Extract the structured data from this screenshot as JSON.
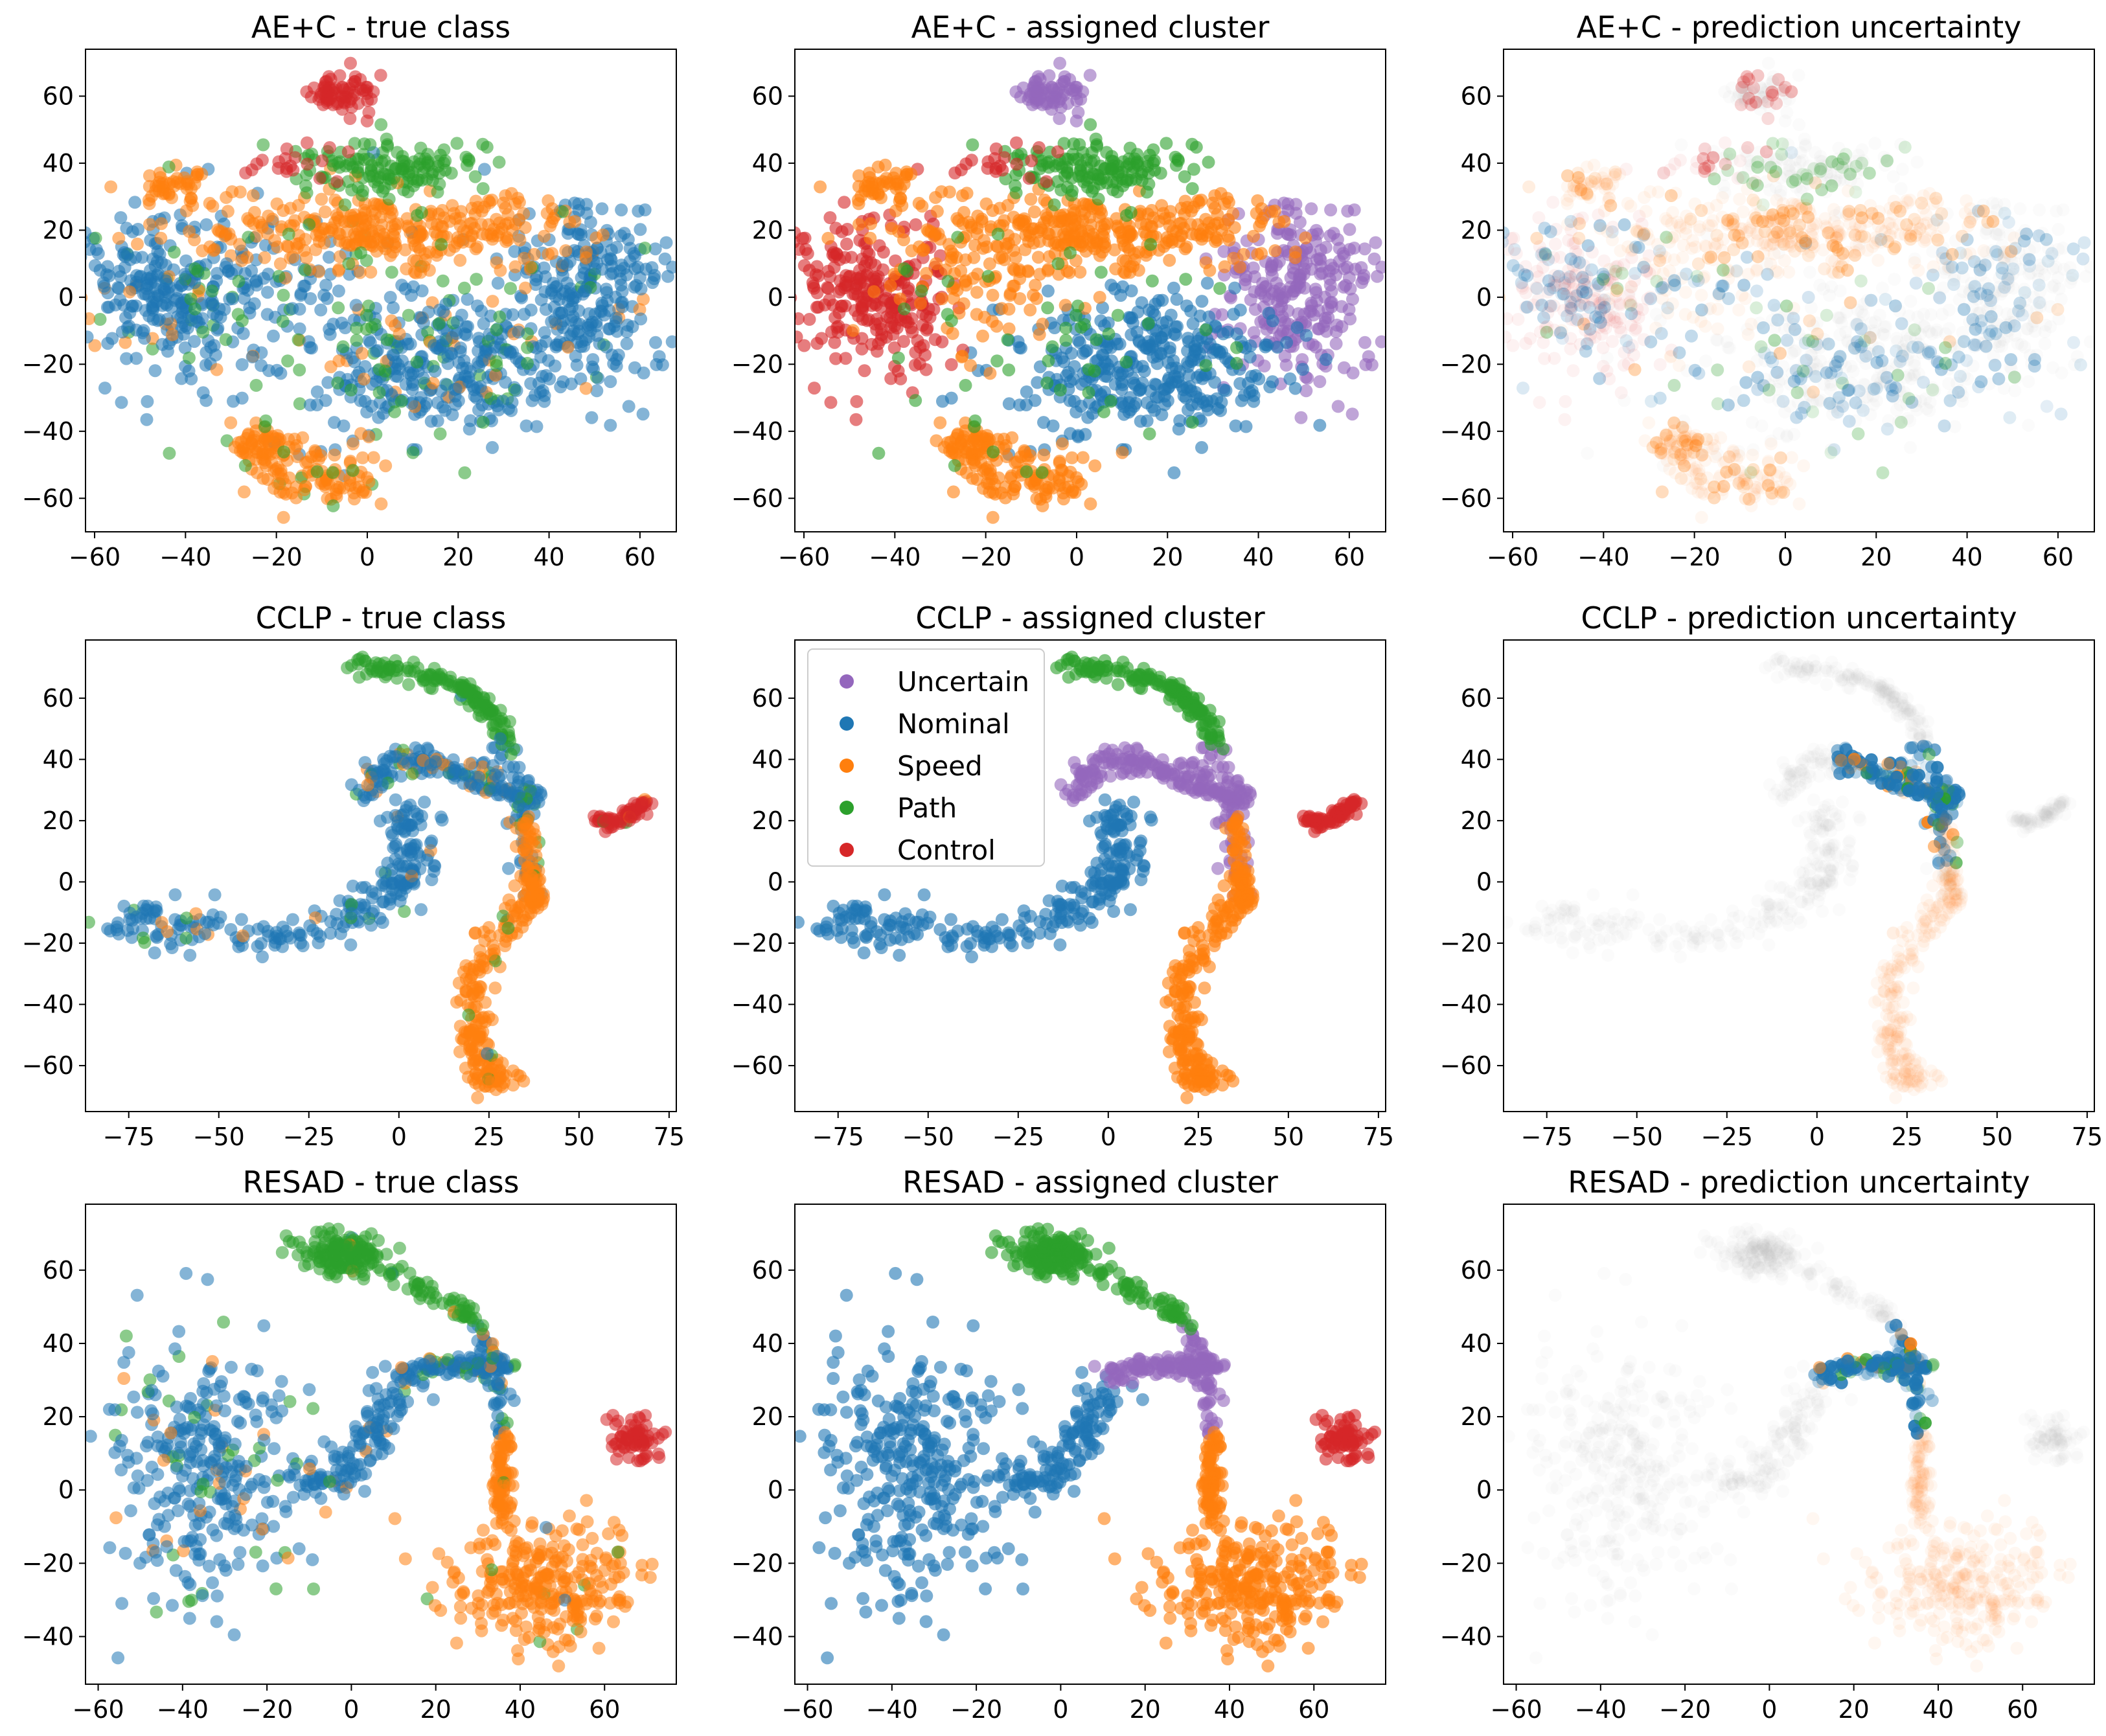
{
  "figure": {
    "class_colors": {
      "Uncertain": "#9467bd",
      "Nominal": "#1f77b4",
      "Speed": "#ff7f0e",
      "Path": "#2ca02c",
      "Control": "#d62728"
    },
    "grey_color": "#b4b4b4",
    "legend": {
      "panel": "CCLP - assigned cluster",
      "entries": [
        "Uncertain",
        "Nominal",
        "Speed",
        "Path",
        "Control"
      ]
    }
  },
  "chart_data": [
    {
      "type": "scatter",
      "title": "AE+C - true class",
      "mode": "true",
      "xlim": [
        -62,
        68
      ],
      "ylim": [
        -70,
        74
      ],
      "xticks": [
        -60,
        -40,
        -20,
        0,
        20,
        40,
        60
      ],
      "xtick_labels": [
        "−60",
        "−40",
        "−20",
        "0",
        "20",
        "40",
        "60"
      ],
      "yticks": [
        -60,
        -40,
        -20,
        0,
        20,
        40,
        60
      ],
      "ytick_labels": [
        "−60",
        "−40",
        "−20",
        "0",
        "20",
        "40",
        "60"
      ],
      "clusters": [
        {
          "true": "Nominal",
          "assigned": "Uncertain",
          "n": 260,
          "cx": 48,
          "cy": 2,
          "sx": 8,
          "sy": 13,
          "mix": 0.1
        },
        {
          "true": "Nominal",
          "assigned": "Nominal",
          "n": 360,
          "cx": 15,
          "cy": -20,
          "sx": 15,
          "sy": 11,
          "mix": 0.25
        },
        {
          "true": "Nominal",
          "assigned": "Control",
          "n": 260,
          "cx": -45,
          "cy": 0,
          "sx": 9,
          "sy": 12,
          "mix": 0.15
        },
        {
          "true": "Nominal",
          "assigned": "Speed",
          "n": 90,
          "cx": -20,
          "cy": 5,
          "sx": 12,
          "sy": 10,
          "mix": 0.1
        },
        {
          "true": "Speed",
          "assigned": "Speed",
          "n": 320,
          "cx": 5,
          "cy": 20,
          "sx": 22,
          "sy": 5,
          "mix": 0.05
        },
        {
          "true": "Speed",
          "assigned": "Speed",
          "n": 90,
          "cx": -10,
          "cy": -55,
          "sx": 7,
          "sy": 5,
          "mix": 0.05
        },
        {
          "true": "Speed",
          "assigned": "Speed",
          "n": 70,
          "cx": -23,
          "cy": -44,
          "sx": 4,
          "sy": 3,
          "mix": 0.05
        },
        {
          "true": "Speed",
          "assigned": "Speed",
          "n": 50,
          "cx": -42,
          "cy": 33,
          "sx": 4,
          "sy": 3,
          "mix": 0.05
        },
        {
          "true": "Path",
          "assigned": "Path",
          "n": 140,
          "cx": 5,
          "cy": 38,
          "sx": 12,
          "sy": 4,
          "mix": 0.1
        },
        {
          "true": "Path",
          "assigned": "Path",
          "n": 60,
          "cx": -5,
          "cy": -10,
          "sx": 22,
          "sy": 20,
          "mix": 0.1
        },
        {
          "true": "Control",
          "assigned": "Uncertain",
          "n": 70,
          "cx": -5,
          "cy": 61,
          "sx": 4,
          "sy": 3,
          "mix": 0.03
        },
        {
          "true": "Control",
          "assigned": "Control",
          "n": 20,
          "cx": -15,
          "cy": 40,
          "sx": 6,
          "sy": 3,
          "mix": 0.05
        }
      ]
    },
    {
      "type": "scatter",
      "title": "AE+C - assigned cluster",
      "mode": "assigned",
      "xlim": [
        -62,
        68
      ],
      "ylim": [
        -70,
        74
      ],
      "xticks": [
        -60,
        -40,
        -20,
        0,
        20,
        40,
        60
      ],
      "xtick_labels": [
        "−60",
        "−40",
        "−20",
        "0",
        "20",
        "40",
        "60"
      ],
      "yticks": [
        -60,
        -40,
        -20,
        0,
        20,
        40,
        60
      ],
      "ytick_labels": [
        "−60",
        "−40",
        "−20",
        "0",
        "20",
        "40",
        "60"
      ],
      "ref": 0
    },
    {
      "type": "scatter",
      "title": "AE+C - prediction uncertainty",
      "mode": "uncertainty",
      "xlim": [
        -62,
        68
      ],
      "ylim": [
        -70,
        74
      ],
      "xticks": [
        -60,
        -40,
        -20,
        0,
        20,
        40,
        60
      ],
      "xtick_labels": [
        "−60",
        "−40",
        "−20",
        "0",
        "20",
        "40",
        "60"
      ],
      "yticks": [
        -60,
        -40,
        -20,
        0,
        20,
        40,
        60
      ],
      "ytick_labels": [
        "−60",
        "−40",
        "−20",
        "0",
        "20",
        "40",
        "60"
      ],
      "ref": 0,
      "uncertain_fraction": 0.3
    },
    {
      "type": "scatter",
      "title": "CCLP - true class",
      "mode": "true",
      "xlim": [
        -87,
        77
      ],
      "ylim": [
        -75,
        79
      ],
      "xticks": [
        -75,
        -50,
        -25,
        0,
        25,
        50,
        75
      ],
      "xtick_labels": [
        "−75",
        "−50",
        "−25",
        "0",
        "25",
        "50",
        "75"
      ],
      "yticks": [
        -60,
        -40,
        -20,
        0,
        20,
        40,
        60
      ],
      "ytick_labels": [
        "−60",
        "−40",
        "−20",
        "0",
        "20",
        "40",
        "60"
      ],
      "clusters": [
        {
          "true": "Nominal",
          "assigned": "Nominal",
          "n": 260,
          "path": [
            [
              -80,
              -12
            ],
            [
              -55,
              -15
            ],
            [
              -30,
              -18
            ],
            [
              -10,
              -10
            ],
            [
              2,
              0
            ],
            [
              5,
              12
            ],
            [
              0,
              25
            ]
          ],
          "w": 4,
          "mix": 0.1
        },
        {
          "true": "Nominal",
          "assigned": "Uncertain",
          "n": 180,
          "path": [
            [
              -10,
              28
            ],
            [
              -5,
              38
            ],
            [
              5,
              40
            ],
            [
              15,
              37
            ],
            [
              25,
              32
            ],
            [
              32,
              29
            ],
            [
              38,
              28
            ]
          ],
          "w": 2.2,
          "mix": 0.25
        },
        {
          "true": "Nominal",
          "assigned": "Uncertain",
          "n": 60,
          "path": [
            [
              30,
              45
            ],
            [
              31,
              35
            ],
            [
              33,
              20
            ],
            [
              36,
              5
            ],
            [
              37,
              -2
            ]
          ],
          "w": 2,
          "mix": 0.2
        },
        {
          "true": "Speed",
          "assigned": "Speed",
          "n": 200,
          "path": [
            [
              37,
              -2
            ],
            [
              30,
              -15
            ],
            [
              22,
              -30
            ],
            [
              20,
              -45
            ],
            [
              22,
              -55
            ],
            [
              25,
              -65
            ],
            [
              30,
              -62
            ]
          ],
          "w": 2.6,
          "mix": 0.05
        },
        {
          "true": "Speed",
          "assigned": "Speed",
          "n": 70,
          "path": [
            [
              35,
              20
            ],
            [
              36,
              10
            ],
            [
              37,
              0
            ],
            [
              38,
              -8
            ]
          ],
          "w": 1.2,
          "mix": 0.05
        },
        {
          "true": "Path",
          "assigned": "Path",
          "n": 150,
          "path": [
            [
              -13,
              71
            ],
            [
              5,
              69
            ],
            [
              18,
              63
            ],
            [
              26,
              55
            ],
            [
              31,
              45
            ]
          ],
          "w": 1.5,
          "mix": 0.05
        },
        {
          "true": "Control",
          "assigned": "Control",
          "n": 70,
          "path": [
            [
              55,
              21
            ],
            [
              60,
              19
            ],
            [
              65,
              22
            ],
            [
              69,
              26
            ]
          ],
          "w": 1.2,
          "mix": 0.03
        }
      ]
    },
    {
      "type": "scatter",
      "title": "CCLP - assigned cluster",
      "mode": "assigned",
      "xlim": [
        -87,
        77
      ],
      "ylim": [
        -75,
        79
      ],
      "xticks": [
        -75,
        -50,
        -25,
        0,
        25,
        50,
        75
      ],
      "xtick_labels": [
        "−75",
        "−50",
        "−25",
        "0",
        "25",
        "50",
        "75"
      ],
      "yticks": [
        -60,
        -40,
        -20,
        0,
        20,
        40,
        60
      ],
      "ytick_labels": [
        "−60",
        "−40",
        "−20",
        "0",
        "20",
        "40",
        "60"
      ],
      "ref": 3,
      "legend": true
    },
    {
      "type": "scatter",
      "title": "CCLP - prediction uncertainty",
      "mode": "uncertainty",
      "xlim": [
        -87,
        77
      ],
      "ylim": [
        -75,
        79
      ],
      "xticks": [
        -75,
        -50,
        -25,
        0,
        25,
        50,
        75
      ],
      "xtick_labels": [
        "−75",
        "−50",
        "−25",
        "0",
        "25",
        "50",
        "75"
      ],
      "yticks": [
        -60,
        -40,
        -20,
        0,
        20,
        40,
        60
      ],
      "ytick_labels": [
        "−60",
        "−40",
        "−20",
        "0",
        "20",
        "40",
        "60"
      ],
      "ref": 3,
      "highlight_region": {
        "x": [
          5,
          42
        ],
        "y": [
          5,
          45
        ]
      }
    },
    {
      "type": "scatter",
      "title": "RESAD - true class",
      "mode": "true",
      "xlim": [
        -63,
        77
      ],
      "ylim": [
        -53,
        78
      ],
      "xticks": [
        -60,
        -40,
        -20,
        0,
        20,
        40,
        60
      ],
      "xtick_labels": [
        "−60",
        "−40",
        "−20",
        "0",
        "20",
        "40",
        "60"
      ],
      "yticks": [
        -40,
        -20,
        0,
        20,
        40,
        60
      ],
      "ytick_labels": [
        "−40",
        "−20",
        "0",
        "20",
        "40",
        "60"
      ],
      "clusters": [
        {
          "true": "Nominal",
          "assigned": "Nominal",
          "n": 320,
          "cx": -35,
          "cy": 5,
          "sx": 12,
          "sy": 17,
          "mix": 0.15
        },
        {
          "true": "Nominal",
          "assigned": "Nominal",
          "n": 130,
          "path": [
            [
              -15,
              0
            ],
            [
              0,
              5
            ],
            [
              5,
              15
            ],
            [
              10,
              28
            ]
          ],
          "w": 3,
          "mix": 0.15
        },
        {
          "true": "Nominal",
          "assigned": "Uncertain",
          "n": 120,
          "path": [
            [
              10,
              30
            ],
            [
              20,
              34
            ],
            [
              30,
              34
            ],
            [
              38,
              34
            ]
          ],
          "w": 1.5,
          "mix": 0.2
        },
        {
          "true": "Nominal",
          "assigned": "Uncertain",
          "n": 50,
          "path": [
            [
              30,
              45
            ],
            [
              33,
              35
            ],
            [
              35,
              25
            ],
            [
              36,
              15
            ]
          ],
          "w": 1.2,
          "mix": 0.2
        },
        {
          "true": "Speed",
          "assigned": "Speed",
          "n": 280,
          "cx": 45,
          "cy": -25,
          "sx": 11,
          "sy": 8,
          "mix": 0.05
        },
        {
          "true": "Speed",
          "assigned": "Speed",
          "n": 80,
          "path": [
            [
              36,
              15
            ],
            [
              36,
              0
            ],
            [
              36,
              -10
            ]
          ],
          "w": 1.2,
          "mix": 0.05
        },
        {
          "true": "Path",
          "assigned": "Path",
          "n": 160,
          "cx": -2,
          "cy": 65,
          "sx": 5,
          "sy": 3,
          "mix": 0.05
        },
        {
          "true": "Path",
          "assigned": "Path",
          "n": 60,
          "path": [
            [
              5,
              62
            ],
            [
              15,
              56
            ],
            [
              25,
              50
            ],
            [
              30,
              45
            ]
          ],
          "w": 1.2,
          "mix": 0.05
        },
        {
          "true": "Control",
          "assigned": "Control",
          "n": 70,
          "cx": 67,
          "cy": 14,
          "sx": 3,
          "sy": 3,
          "mix": 0.03
        }
      ]
    },
    {
      "type": "scatter",
      "title": "RESAD - assigned cluster",
      "mode": "assigned",
      "xlim": [
        -63,
        77
      ],
      "ylim": [
        -53,
        78
      ],
      "xticks": [
        -60,
        -40,
        -20,
        0,
        20,
        40,
        60
      ],
      "xtick_labels": [
        "−60",
        "−40",
        "−20",
        "0",
        "20",
        "40",
        "60"
      ],
      "yticks": [
        -40,
        -20,
        0,
        20,
        40,
        60
      ],
      "ytick_labels": [
        "−40",
        "−20",
        "0",
        "20",
        "40",
        "60"
      ],
      "ref": 6
    },
    {
      "type": "scatter",
      "title": "RESAD - prediction uncertainty",
      "mode": "uncertainty",
      "xlim": [
        -63,
        77
      ],
      "ylim": [
        -53,
        78
      ],
      "xticks": [
        -60,
        -40,
        -20,
        0,
        20,
        40,
        60
      ],
      "xtick_labels": [
        "−60",
        "−40",
        "−20",
        "0",
        "20",
        "40",
        "60"
      ],
      "yticks": [
        -40,
        -20,
        0,
        20,
        40,
        60
      ],
      "ytick_labels": [
        "−40",
        "−20",
        "0",
        "20",
        "40",
        "60"
      ],
      "ref": 6,
      "highlight_region": {
        "x": [
          10,
          40
        ],
        "y": [
          -5,
          45
        ]
      }
    }
  ]
}
